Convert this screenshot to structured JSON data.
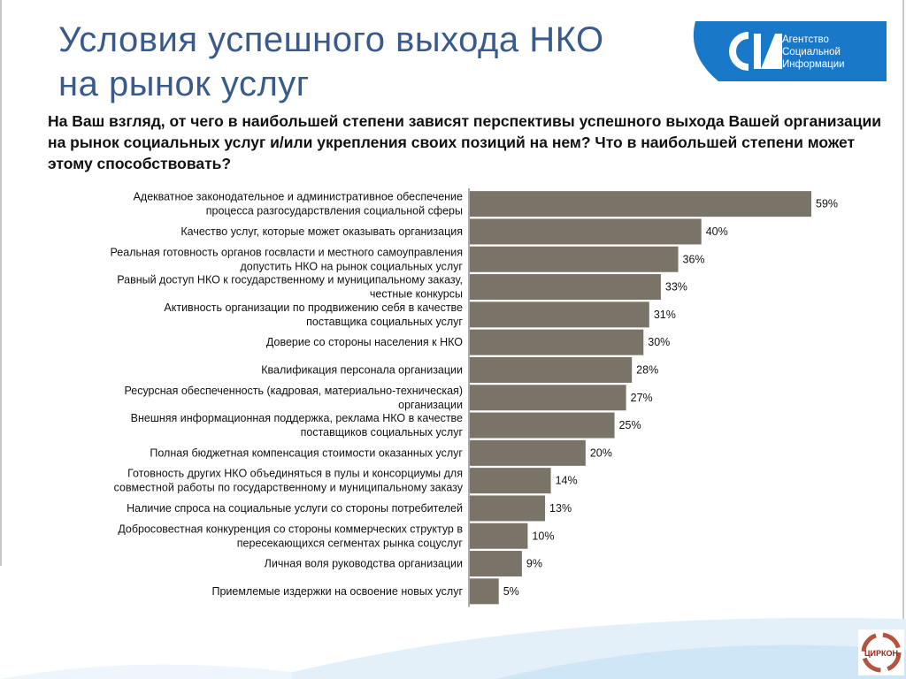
{
  "slide": {
    "title_line1": "Условия успешного выхода НКО",
    "title_line2": "на рынок услуг",
    "question": "На Ваш взгляд, от чего в наибольшей степени зависят перспективы успешного выхода Вашей организации на рынок социальных услуг и/или укрепления своих позиций на нем? Что в наибольшей степени может этому способствовать?"
  },
  "logo": {
    "line1": "Агентство",
    "line2": "Социальной",
    "line3": "Информации"
  },
  "badge": {
    "text": "ЦИРКОН"
  },
  "colors": {
    "bar": "#7a7468",
    "title": "#3a5a8c",
    "logo_blue": "#1a78c8"
  },
  "chart_data": {
    "type": "bar",
    "orientation": "horizontal",
    "title": "",
    "xlabel": "",
    "ylabel": "",
    "xlim": [
      0,
      100
    ],
    "grid": false,
    "value_suffix": "%",
    "categories": [
      [
        "Адекватное законодательное и административное обеспечение",
        "процесса разгосударствления социальной сферы"
      ],
      [
        "Качество услуг, которые может оказывать организация"
      ],
      [
        "Реальная готовность органов госвласти и местного самоуправления",
        "допустить НКО на рынок социальных услуг"
      ],
      [
        "Равный доступ НКО к государственному и муниципальному заказу,",
        "честные конкурсы"
      ],
      [
        "Активность организации по продвижению себя в качестве",
        "поставщика социальных услуг"
      ],
      [
        "Доверие со стороны населения к НКО"
      ],
      [
        "Квалификация персонала организации"
      ],
      [
        "Ресурсная обеспеченность (кадровая, материально-техническая)",
        "организации"
      ],
      [
        "Внешняя информационная поддержка, реклама НКО в качестве",
        "поставщиков социальных услуг"
      ],
      [
        "Полная бюджетная компенсация стоимости оказанных услуг"
      ],
      [
        "Готовность других НКО объединяться в пулы и консорциумы для",
        "совместной работы по государственному и муниципальному заказу"
      ],
      [
        "Наличие спроса на социальные услуги со стороны потребителей"
      ],
      [
        "Добросовестная конкуренция со стороны коммерческих структур в",
        "пересекающихся сегментах рынка соцуслуг"
      ],
      [
        "Личная воля руководства организации"
      ],
      [
        "Приемлемые издержки на освоение новых услуг"
      ]
    ],
    "values": [
      59,
      40,
      36,
      33,
      31,
      30,
      28,
      27,
      25,
      20,
      14,
      13,
      10,
      9,
      5
    ]
  }
}
